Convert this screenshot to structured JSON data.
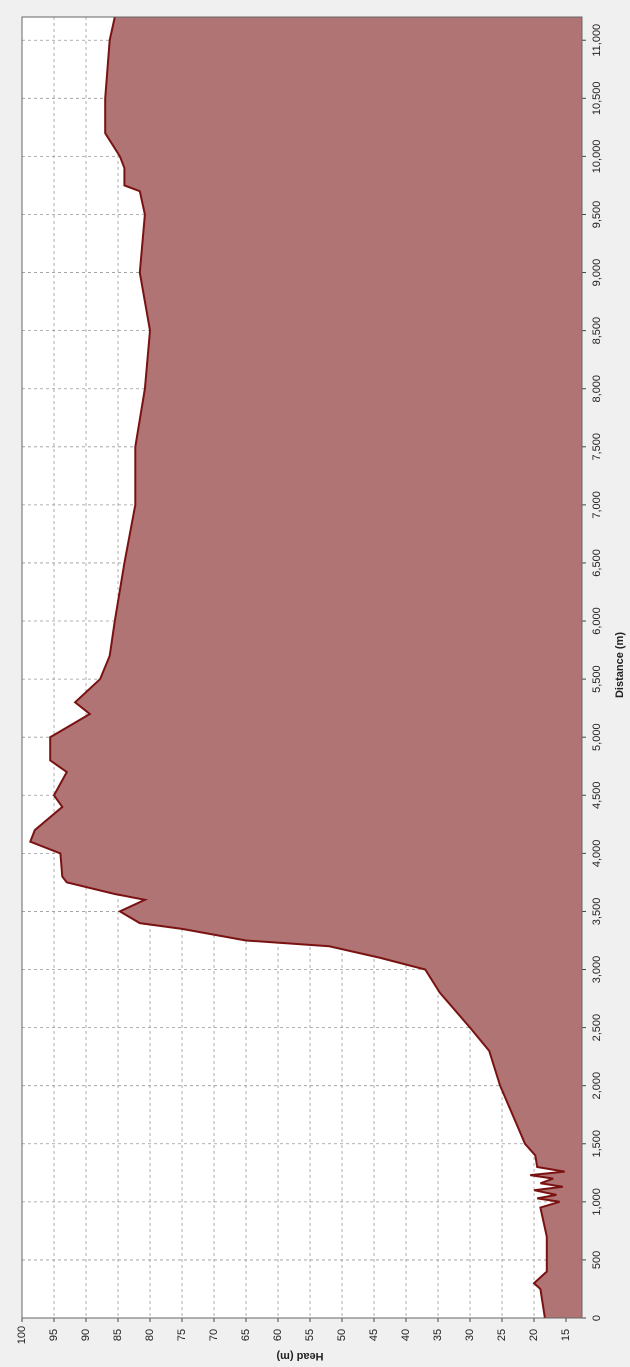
{
  "chart_data": {
    "type": "area",
    "xlabel": "Distance (m)",
    "ylabel": "Head (m)",
    "x": [
      0,
      250,
      300,
      400,
      700,
      950,
      1000,
      1030,
      1060,
      1100,
      1130,
      1160,
      1200,
      1230,
      1260,
      1300,
      1400,
      1500,
      2000,
      2300,
      2500,
      2800,
      3000,
      3100,
      3200,
      3250,
      3350,
      3400,
      3500,
      3600,
      3650,
      3750,
      3800,
      4000,
      4100,
      4200,
      4400,
      4500,
      4700,
      4800,
      5000,
      5100,
      5200,
      5300,
      5500,
      5700,
      6000,
      6500,
      7000,
      7500,
      8000,
      8500,
      9000,
      9500,
      9700,
      9750,
      9900,
      10000,
      10200,
      10500,
      11000,
      11200
    ],
    "values": [
      18.3,
      19,
      20,
      18,
      18,
      19,
      16,
      19.5,
      16.5,
      20,
      15.5,
      19,
      17,
      20.6,
      15.2,
      19.5,
      19.8,
      21.4,
      25.3,
      27,
      30,
      34.7,
      37,
      44,
      52,
      65,
      75,
      81.6,
      84.7,
      80.8,
      85.5,
      93,
      93.7,
      94,
      98.7,
      98,
      93.7,
      95,
      93,
      95.6,
      95.6,
      92.5,
      89.4,
      91.7,
      87.8,
      86.3,
      85.5,
      84,
      82.3,
      82.3,
      80.8,
      80,
      81.6,
      80.8,
      81.6,
      84,
      84,
      84.7,
      87,
      87,
      86.3,
      85.5
    ],
    "fill": "#b07474",
    "line_color": "#7a1212",
    "xlim": [
      0,
      11200
    ],
    "xticks": [
      0,
      500,
      {
        "value": 1000,
        "label": "1,000"
      },
      {
        "value": 1500,
        "label": "1,500"
      },
      {
        "value": 2000,
        "label": "2,000"
      },
      {
        "value": 2500,
        "label": "2,500"
      },
      {
        "value": 3000,
        "label": "3,000"
      },
      {
        "value": 3500,
        "label": "3,500"
      },
      {
        "value": 4000,
        "label": "4,000"
      },
      {
        "value": 4500,
        "label": "4,500"
      },
      {
        "value": 5000,
        "label": "5,000"
      },
      {
        "value": 5500,
        "label": "5,500"
      },
      {
        "value": 6000,
        "label": "6,000"
      },
      {
        "value": 6500,
        "label": "6,500"
      },
      {
        "value": 7000,
        "label": "7,000"
      },
      {
        "value": 7500,
        "label": "7,500"
      },
      {
        "value": 8000,
        "label": "8,000"
      },
      {
        "value": 8500,
        "label": "8,500"
      },
      {
        "value": 9000,
        "label": "9,000"
      },
      {
        "value": 9500,
        "label": "9,500"
      },
      {
        "value": 10000,
        "label": "10,000"
      },
      {
        "value": 10500,
        "label": "10,500"
      },
      {
        "value": 11000,
        "label": "11,000"
      }
    ],
    "ylim": [
      12.5,
      100
    ],
    "yticks": [
      15,
      20,
      25,
      30,
      35,
      40,
      45,
      50,
      55,
      60,
      65,
      70,
      75,
      80,
      85,
      90,
      95,
      100
    ],
    "grid": true
  }
}
